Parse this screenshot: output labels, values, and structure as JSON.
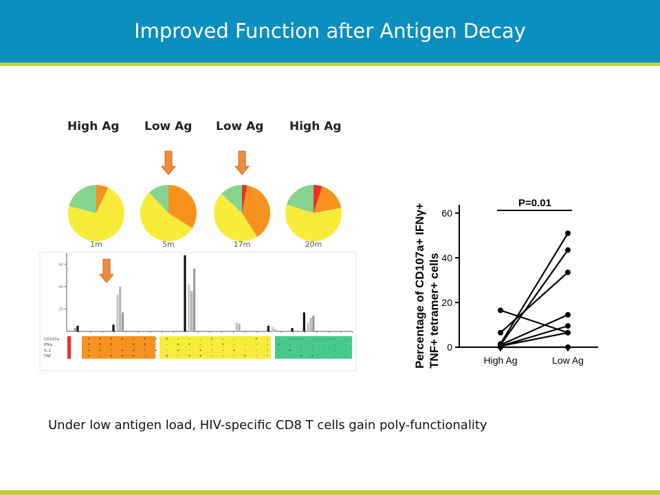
{
  "title": "Improved Function after Antigen Decay",
  "caption": "Under low antigen load, HIV-specific CD8 T cells gain poly-functionality",
  "colors": {
    "header": "#0b8fbf",
    "accent_rule": "#bcd02f",
    "arrow": "#f08a3c"
  },
  "column_labels": [
    "High Ag",
    "Low Ag",
    "Low Ag",
    "High Ag"
  ],
  "chart_data": [
    {
      "type": "pie",
      "title": "",
      "pies": [
        {
          "label": "1m",
          "column": "High Ag",
          "arrow": false,
          "slices": [
            {
              "color": "#f7921e",
              "value": 7
            },
            {
              "color": "#f8ec3a",
              "value": 72
            },
            {
              "color": "#86d48e",
              "value": 21
            }
          ]
        },
        {
          "label": "5m",
          "column": "Low Ag",
          "arrow": true,
          "slices": [
            {
              "color": "#f7921e",
              "value": 34
            },
            {
              "color": "#f8ec3a",
              "value": 54
            },
            {
              "color": "#86d48e",
              "value": 12
            }
          ]
        },
        {
          "label": "17m",
          "column": "Low Ag",
          "arrow": true,
          "slices": [
            {
              "color": "#e8302a",
              "value": 3
            },
            {
              "color": "#f7921e",
              "value": 38
            },
            {
              "color": "#f8ec3a",
              "value": 46
            },
            {
              "color": "#86d48e",
              "value": 13
            }
          ]
        },
        {
          "label": "20m",
          "column": "High Ag",
          "arrow": false,
          "slices": [
            {
              "color": "#e8302a",
              "value": 5
            },
            {
              "color": "#f7921e",
              "value": 17
            },
            {
              "color": "#f8ec3a",
              "value": 58
            },
            {
              "color": "#86d48e",
              "value": 20
            }
          ]
        }
      ]
    },
    {
      "type": "bar",
      "title": "",
      "ylim": [
        0,
        70
      ],
      "yticks": [
        "60",
        "40",
        "20"
      ],
      "ytick_values": [
        60,
        40,
        20
      ],
      "row_labels": [
        "CD107a",
        "IFNγ",
        "IL-2",
        "TNF"
      ],
      "series_colors": [
        "#c6c6c6",
        "#b5b5b5",
        "#9a9a9a",
        "#111111"
      ],
      "groups": [
        {
          "values": [
            0,
            0,
            3,
            5
          ],
          "grid": [
            "+",
            "+",
            "+",
            "+"
          ]
        },
        {
          "values": [
            0,
            0,
            0,
            0
          ],
          "grid": [
            "+",
            "+",
            "+",
            "-"
          ]
        },
        {
          "values": [
            0,
            0,
            0,
            0
          ],
          "grid": [
            "+",
            "+",
            "-",
            "+"
          ]
        },
        {
          "values": [
            0,
            0,
            0,
            6
          ],
          "grid": [
            "+",
            "-",
            "+",
            "+"
          ]
        },
        {
          "values": [
            33,
            40,
            17,
            0
          ],
          "grid": [
            "-",
            "+",
            "+",
            "+"
          ]
        },
        {
          "values": [
            0,
            0,
            0,
            0
          ],
          "grid": [
            "+",
            "+",
            "-",
            "-"
          ]
        },
        {
          "values": [
            0,
            0,
            0,
            0
          ],
          "grid": [
            "+",
            "-",
            "+",
            "-"
          ]
        },
        {
          "values": [
            0,
            0,
            0,
            0
          ],
          "grid": [
            "+",
            "-",
            "-",
            "+"
          ]
        },
        {
          "values": [
            0,
            0,
            0,
            0
          ],
          "grid": [
            "-",
            "+",
            "+",
            "-"
          ]
        },
        {
          "values": [
            0,
            0,
            0,
            68
          ],
          "grid": [
            "-",
            "+",
            "-",
            "+"
          ]
        },
        {
          "values": [
            42,
            36,
            56,
            0
          ],
          "grid": [
            "-",
            "-",
            "+",
            "+"
          ]
        },
        {
          "values": [
            0,
            0,
            0,
            0
          ],
          "grid": [
            "+",
            "-",
            "-",
            "-"
          ]
        },
        {
          "values": [
            0,
            0,
            0,
            0
          ],
          "grid": [
            "-",
            "+",
            "-",
            "-"
          ]
        },
        {
          "values": [
            0,
            0,
            0,
            0
          ],
          "grid": [
            "-",
            "-",
            "+",
            "-"
          ]
        },
        {
          "values": [
            8,
            7,
            0,
            0
          ],
          "grid": [
            "-",
            "-",
            "-",
            "+"
          ]
        },
        {
          "values": [
            0,
            0,
            0,
            0
          ],
          "grid": [
            "+",
            "-",
            "-",
            "-"
          ]
        },
        {
          "values": [
            0,
            0,
            0,
            5
          ],
          "grid": [
            "-",
            "-",
            "-",
            "-"
          ]
        },
        {
          "values": [
            4,
            2,
            0,
            0
          ],
          "grid": [
            "-",
            "+",
            "-",
            "-"
          ]
        },
        {
          "values": [
            0,
            0,
            0,
            3
          ],
          "grid": [
            "-",
            "-",
            "+",
            "-"
          ]
        },
        {
          "values": [
            0,
            0,
            0,
            17
          ],
          "grid": [
            "-",
            "-",
            "-",
            "+"
          ]
        },
        {
          "values": [
            8,
            12,
            14,
            0
          ],
          "grid": [
            "-",
            "-",
            "-",
            "+"
          ]
        },
        {
          "values": [
            0,
            0,
            0,
            0
          ],
          "grid": [
            "-",
            "-",
            "-",
            "-"
          ]
        },
        {
          "values": [
            0,
            0,
            0,
            0
          ],
          "grid": [
            "-",
            "-",
            "-",
            "-"
          ]
        },
        {
          "values": [
            0,
            0,
            0,
            0
          ],
          "grid": [
            "-",
            "-",
            "-",
            "-"
          ]
        }
      ],
      "color_blocks": [
        {
          "color": "#e8302a",
          "from": 0,
          "to": 0
        },
        {
          "color": "#f7921e",
          "from": 1,
          "to": 6
        },
        {
          "color": "#f8ec3a",
          "from": 7,
          "to": 18
        },
        {
          "color": "#48c98c",
          "from": 19,
          "to": 24
        }
      ],
      "arrow_group": 3
    },
    {
      "type": "line",
      "title": "",
      "annotation": "P=0.01",
      "ylabel": [
        "Percentage of CD107a+ IFNγ+",
        "TNF+ tetramer+ cells"
      ],
      "categories": [
        "High Ag",
        "Low Ag"
      ],
      "ylim": [
        0,
        60
      ],
      "yticks": [
        0,
        20,
        40,
        60
      ],
      "series": [
        {
          "values": [
            16.5,
            6.5
          ]
        },
        {
          "values": [
            6.5,
            33.5
          ]
        },
        {
          "values": [
            1.5,
            51
          ]
        },
        {
          "values": [
            1,
            43.5
          ]
        },
        {
          "values": [
            1,
            14.5
          ]
        },
        {
          "values": [
            0.5,
            9.5
          ]
        },
        {
          "values": [
            0.5,
            6.5
          ]
        },
        {
          "values": [
            0,
            0
          ]
        }
      ]
    }
  ]
}
